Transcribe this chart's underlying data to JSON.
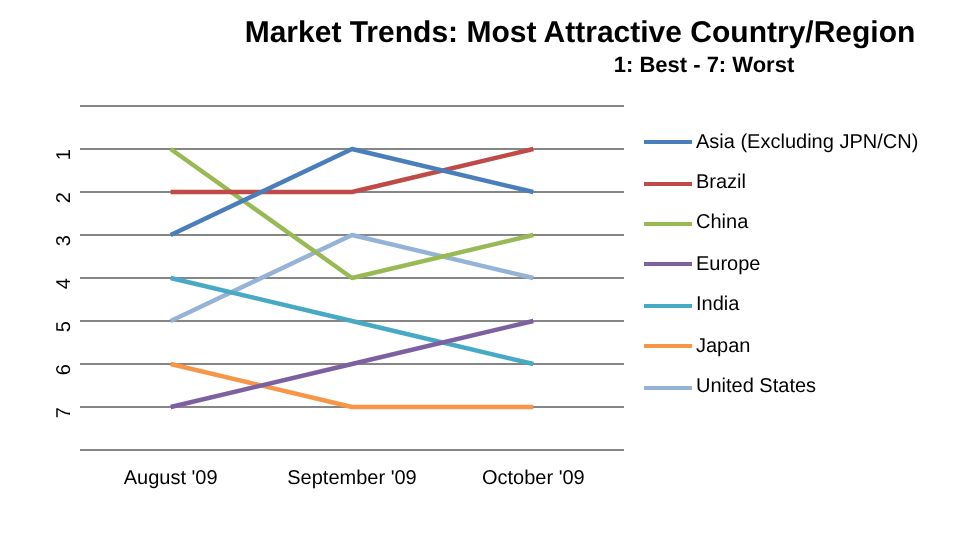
{
  "chart_data": {
    "type": "line",
    "title": "Market Trends: Most Attractive Country/Region",
    "subtitle": "1: Best - 7: Worst",
    "categories": [
      "August '09",
      "September '09",
      "October '09"
    ],
    "series": [
      {
        "name": "Asia (Excluding JPN/CN)",
        "color": "#4a7ebb",
        "values": [
          3,
          1,
          2
        ]
      },
      {
        "name": "Brazil",
        "color": "#be4b48",
        "values": [
          2,
          2,
          1
        ]
      },
      {
        "name": "China",
        "color": "#98b954",
        "values": [
          1,
          4,
          3
        ]
      },
      {
        "name": "Europe",
        "color": "#7d60a0",
        "values": [
          7,
          6,
          5
        ]
      },
      {
        "name": "India",
        "color": "#46aac5",
        "values": [
          4,
          5,
          6
        ]
      },
      {
        "name": "Japan",
        "color": "#f79646",
        "values": [
          6,
          7,
          7
        ]
      },
      {
        "name": "United States",
        "color": "#95b3d7",
        "values": [
          5,
          3,
          4
        ]
      }
    ],
    "ylim": [
      8,
      0
    ],
    "yticks": [
      {
        "value": 0,
        "label": null
      },
      1,
      2,
      3,
      4,
      5,
      6,
      7,
      {
        "value": 8,
        "label": null
      }
    ],
    "grid": "y",
    "legend": "right",
    "marker": "none",
    "line_style": "solid"
  }
}
